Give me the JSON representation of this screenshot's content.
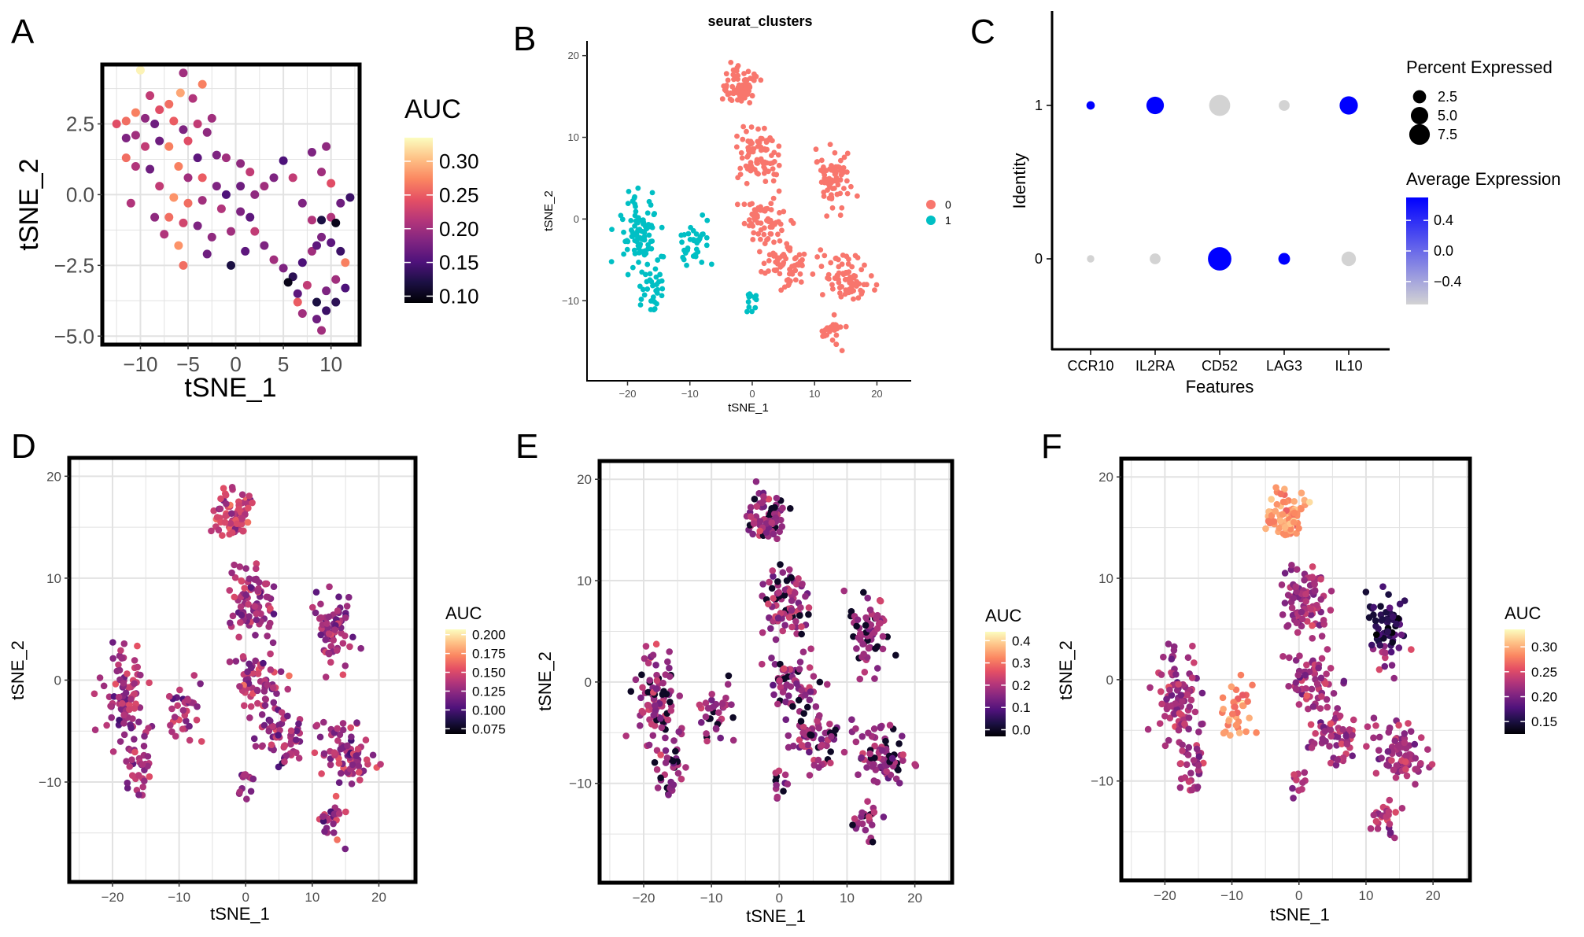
{
  "panels": {
    "A": {
      "letter": "A",
      "xlabel": "tSNE_1",
      "ylabel": "tSNE_2",
      "xticks": [
        "−10",
        "−5",
        "0",
        "5",
        "10"
      ],
      "yticks": [
        "2.5",
        "0.0",
        "−2.5",
        "−5.0"
      ],
      "legend_title": "AUC",
      "legend_ticks": [
        "0.30",
        "0.25",
        "0.20",
        "0.15",
        "0.10"
      ]
    },
    "B": {
      "letter": "B",
      "title": "seurat_clusters",
      "xlabel": "tSNE_1",
      "ylabel": "tSNE_2",
      "xticks": [
        "−20",
        "−10",
        "0",
        "10",
        "20"
      ],
      "yticks": [
        "20",
        "10",
        "0",
        "−10"
      ],
      "legend_items": [
        "0",
        "1"
      ]
    },
    "C": {
      "letter": "C",
      "xlabel": "Features",
      "ylabel": "Identity",
      "features": [
        "CCR10",
        "IL2RA",
        "CD52",
        "LAG3",
        "IL10"
      ],
      "identities": [
        "1",
        "0"
      ],
      "size_title": "Percent Expressed",
      "size_ticks": [
        "2.5",
        "5.0",
        "7.5"
      ],
      "color_title": "Average Expression",
      "color_ticks": [
        "0.4",
        "0.0",
        "−0.4"
      ]
    },
    "D": {
      "letter": "D",
      "xlabel": "tSNE_1",
      "ylabel": "tSNE_2",
      "xticks": [
        "−20",
        "−10",
        "0",
        "10",
        "20"
      ],
      "yticks": [
        "20",
        "10",
        "0",
        "−10"
      ],
      "legend_title": "AUC",
      "legend_ticks": [
        "0.200",
        "0.175",
        "0.150",
        "0.125",
        "0.100",
        "0.075"
      ]
    },
    "E": {
      "letter": "E",
      "xlabel": "tSNE_1",
      "ylabel": "tSNE_2",
      "xticks": [
        "−20",
        "−10",
        "0",
        "10",
        "20"
      ],
      "yticks": [
        "20",
        "10",
        "0",
        "−10"
      ],
      "legend_title": "AUC",
      "legend_ticks": [
        "0.4",
        "0.3",
        "0.2",
        "0.1",
        "0.0"
      ]
    },
    "F": {
      "letter": "F",
      "xlabel": "tSNE_1",
      "ylabel": "tSNE_2",
      "xticks": [
        "−20",
        "−10",
        "0",
        "10",
        "20"
      ],
      "yticks": [
        "20",
        "10",
        "0",
        "−10"
      ],
      "legend_title": "AUC",
      "legend_ticks": [
        "0.30",
        "0.25",
        "0.20",
        "0.15"
      ]
    }
  },
  "colors": {
    "magma": [
      "#000004",
      "#1c1044",
      "#4f127b",
      "#812581",
      "#b5367a",
      "#e55064",
      "#fb8761",
      "#fec287",
      "#fcfdbf"
    ],
    "cluster_0": "#f8766d",
    "cluster_1": "#00bfc4",
    "expr_high": "#0000ff",
    "expr_low": "#d3d3d3",
    "grid": "#e2e2e2"
  },
  "chart_data": [
    {
      "panel": "A",
      "type": "scatter",
      "xlabel": "tSNE_1",
      "ylabel": "tSNE_2",
      "xlim": [
        -14,
        13
      ],
      "ylim": [
        -5.3,
        4.6
      ],
      "color_scale": "magma",
      "color_range": [
        0.09,
        0.335
      ],
      "legend_title": "AUC",
      "points": [
        {
          "x": -10,
          "y": 4.4,
          "auc": 0.33
        },
        {
          "x": -5.5,
          "y": 4.3,
          "auc": 0.2
        },
        {
          "x": -3.5,
          "y": 3.9,
          "auc": 0.27
        },
        {
          "x": -5.8,
          "y": 3.6,
          "auc": 0.29
        },
        {
          "x": -9,
          "y": 3.5,
          "auc": 0.22
        },
        {
          "x": -7,
          "y": 3.2,
          "auc": 0.26
        },
        {
          "x": -4.5,
          "y": 3.4,
          "auc": 0.21
        },
        {
          "x": -8,
          "y": 3.0,
          "auc": 0.24
        },
        {
          "x": -10.5,
          "y": 2.9,
          "auc": 0.27
        },
        {
          "x": -9.5,
          "y": 2.7,
          "auc": 0.19
        },
        {
          "x": -11.5,
          "y": 2.6,
          "auc": 0.26
        },
        {
          "x": -8.5,
          "y": 2.5,
          "auc": 0.17
        },
        {
          "x": -6.5,
          "y": 2.6,
          "auc": 0.25
        },
        {
          "x": -5.5,
          "y": 2.3,
          "auc": 0.18
        },
        {
          "x": -4,
          "y": 2.5,
          "auc": 0.22
        },
        {
          "x": -3,
          "y": 2.2,
          "auc": 0.19
        },
        {
          "x": -2.5,
          "y": 2.7,
          "auc": 0.2
        },
        {
          "x": -12.5,
          "y": 2.5,
          "auc": 0.24
        },
        {
          "x": -11.5,
          "y": 2.0,
          "auc": 0.18
        },
        {
          "x": -10.5,
          "y": 2.1,
          "auc": 0.2
        },
        {
          "x": -9.5,
          "y": 1.7,
          "auc": 0.22
        },
        {
          "x": -8,
          "y": 1.9,
          "auc": 0.17
        },
        {
          "x": -7,
          "y": 1.7,
          "auc": 0.27
        },
        {
          "x": -5,
          "y": 1.9,
          "auc": 0.24
        },
        {
          "x": -4,
          "y": 1.3,
          "auc": 0.16
        },
        {
          "x": -2,
          "y": 1.4,
          "auc": 0.18
        },
        {
          "x": -1,
          "y": 1.3,
          "auc": 0.2
        },
        {
          "x": 0.5,
          "y": 1.1,
          "auc": 0.19
        },
        {
          "x": 1.5,
          "y": 0.8,
          "auc": 0.22
        },
        {
          "x": -11.5,
          "y": 1.3,
          "auc": 0.26
        },
        {
          "x": -10.5,
          "y": 1.0,
          "auc": 0.21
        },
        {
          "x": -9,
          "y": 0.9,
          "auc": 0.17
        },
        {
          "x": -6,
          "y": 1.0,
          "auc": 0.27
        },
        {
          "x": -5,
          "y": 0.6,
          "auc": 0.2
        },
        {
          "x": -3.5,
          "y": 0.6,
          "auc": 0.25
        },
        {
          "x": -2,
          "y": 0.3,
          "auc": 0.18
        },
        {
          "x": -1,
          "y": 0.0,
          "auc": 0.15
        },
        {
          "x": 0.5,
          "y": 0.3,
          "auc": 0.17
        },
        {
          "x": 2,
          "y": 0.0,
          "auc": 0.19
        },
        {
          "x": 3,
          "y": 0.3,
          "auc": 0.2
        },
        {
          "x": 4,
          "y": 0.6,
          "auc": 0.18
        },
        {
          "x": -8,
          "y": 0.3,
          "auc": 0.22
        },
        {
          "x": -6.5,
          "y": -0.1,
          "auc": 0.28
        },
        {
          "x": -5,
          "y": -0.3,
          "auc": 0.26
        },
        {
          "x": -3.5,
          "y": -0.2,
          "auc": 0.2
        },
        {
          "x": -1.5,
          "y": -0.5,
          "auc": 0.21
        },
        {
          "x": 0.5,
          "y": -0.6,
          "auc": 0.18
        },
        {
          "x": 1.5,
          "y": -0.8,
          "auc": 0.16
        },
        {
          "x": -11,
          "y": -0.3,
          "auc": 0.21
        },
        {
          "x": -8.5,
          "y": -0.8,
          "auc": 0.19
        },
        {
          "x": -7,
          "y": -0.8,
          "auc": 0.26
        },
        {
          "x": -5.5,
          "y": -1.0,
          "auc": 0.23
        },
        {
          "x": -4,
          "y": -1.1,
          "auc": 0.18
        },
        {
          "x": -2.5,
          "y": -1.5,
          "auc": 0.19
        },
        {
          "x": -0.5,
          "y": -1.3,
          "auc": 0.2
        },
        {
          "x": 2,
          "y": -1.3,
          "auc": 0.22
        },
        {
          "x": 3,
          "y": -1.8,
          "auc": 0.18
        },
        {
          "x": -7.5,
          "y": -1.4,
          "auc": 0.21
        },
        {
          "x": -6,
          "y": -1.8,
          "auc": 0.28
        },
        {
          "x": -3,
          "y": -2.1,
          "auc": 0.17
        },
        {
          "x": -0.5,
          "y": -2.5,
          "auc": 0.12
        },
        {
          "x": 1,
          "y": -2.0,
          "auc": 0.16
        },
        {
          "x": -5.5,
          "y": -2.5,
          "auc": 0.26
        },
        {
          "x": 4,
          "y": -2.3,
          "auc": 0.2
        },
        {
          "x": 5,
          "y": -2.6,
          "auc": 0.18
        },
        {
          "x": 6,
          "y": -2.9,
          "auc": 0.13
        },
        {
          "x": 7,
          "y": -2.4,
          "auc": 0.15
        },
        {
          "x": 8,
          "y": -2.0,
          "auc": 0.2
        },
        {
          "x": 9,
          "y": -1.5,
          "auc": 0.18
        },
        {
          "x": 10,
          "y": -1.7,
          "auc": 0.16
        },
        {
          "x": 11,
          "y": -2.0,
          "auc": 0.14
        },
        {
          "x": 11.5,
          "y": -2.4,
          "auc": 0.27
        },
        {
          "x": 5.5,
          "y": -3.1,
          "auc": 0.1
        },
        {
          "x": 6.5,
          "y": -3.5,
          "auc": 0.16
        },
        {
          "x": 7.5,
          "y": -3.2,
          "auc": 0.22
        },
        {
          "x": 8.5,
          "y": -3.8,
          "auc": 0.12
        },
        {
          "x": 9.5,
          "y": -3.4,
          "auc": 0.18
        },
        {
          "x": 10.5,
          "y": -3.0,
          "auc": 0.2
        },
        {
          "x": 11.5,
          "y": -3.3,
          "auc": 0.15
        },
        {
          "x": 7,
          "y": -4.2,
          "auc": 0.2
        },
        {
          "x": 8.5,
          "y": -4.4,
          "auc": 0.17
        },
        {
          "x": 9.5,
          "y": -4.1,
          "auc": 0.14
        },
        {
          "x": 10.5,
          "y": -3.8,
          "auc": 0.13
        },
        {
          "x": 6.5,
          "y": -3.8,
          "auc": 0.25
        },
        {
          "x": 9,
          "y": -4.8,
          "auc": 0.2
        },
        {
          "x": 10,
          "y": -0.8,
          "auc": 0.21
        },
        {
          "x": 11,
          "y": -0.3,
          "auc": 0.17
        },
        {
          "x": 12,
          "y": -0.1,
          "auc": 0.14
        },
        {
          "x": 9,
          "y": 0.8,
          "auc": 0.2
        },
        {
          "x": 10,
          "y": 0.4,
          "auc": 0.24
        },
        {
          "x": 8,
          "y": 1.5,
          "auc": 0.18
        },
        {
          "x": 9.5,
          "y": 1.7,
          "auc": 0.19
        },
        {
          "x": 5,
          "y": 1.2,
          "auc": 0.15
        },
        {
          "x": 6,
          "y": 0.6,
          "auc": 0.22
        },
        {
          "x": 7,
          "y": -0.3,
          "auc": 0.18
        },
        {
          "x": 8,
          "y": -0.9,
          "auc": 0.21
        },
        {
          "x": 9,
          "y": -0.9,
          "auc": 0.12
        },
        {
          "x": 8.5,
          "y": -1.8,
          "auc": 0.16
        },
        {
          "x": 10.5,
          "y": -1.0,
          "auc": 0.1
        }
      ]
    },
    {
      "panel": "B",
      "type": "scatter",
      "title": "seurat_clusters",
      "xlabel": "tSNE_1",
      "ylabel": "tSNE_2",
      "xlim": [
        -26.5,
        25.5
      ],
      "ylim": [
        -19.8,
        21.8
      ],
      "series": [
        {
          "name": "0",
          "color": "#f8766d"
        },
        {
          "name": "1",
          "color": "#00bfc4"
        }
      ]
    },
    {
      "panel": "C",
      "type": "dot_plot",
      "xlabel": "Features",
      "ylabel": "Identity",
      "features": [
        "CCR10",
        "IL2RA",
        "CD52",
        "LAG3",
        "IL10"
      ],
      "identities": [
        "0",
        "1"
      ],
      "size_title": "Percent Expressed",
      "color_title": "Average Expression",
      "dots": [
        {
          "feature": "CCR10",
          "identity": "1",
          "pct": 0.6,
          "avg": 0.7
        },
        {
          "feature": "IL2RA",
          "identity": "1",
          "pct": 4.5,
          "avg": 0.7
        },
        {
          "feature": "CD52",
          "identity": "1",
          "pct": 7.0,
          "avg": -0.7
        },
        {
          "feature": "LAG3",
          "identity": "1",
          "pct": 1.3,
          "avg": -0.7
        },
        {
          "feature": "IL10",
          "identity": "1",
          "pct": 5.0,
          "avg": 0.7
        },
        {
          "feature": "CCR10",
          "identity": "0",
          "pct": 0.4,
          "avg": -0.7
        },
        {
          "feature": "IL2RA",
          "identity": "0",
          "pct": 1.3,
          "avg": -0.7
        },
        {
          "feature": "CD52",
          "identity": "0",
          "pct": 9.0,
          "avg": 0.7
        },
        {
          "feature": "LAG3",
          "identity": "0",
          "pct": 1.6,
          "avg": 0.7
        },
        {
          "feature": "IL10",
          "identity": "0",
          "pct": 2.8,
          "avg": -0.7
        }
      ]
    },
    {
      "panel": "D",
      "type": "scatter",
      "xlabel": "tSNE_1",
      "ylabel": "tSNE_2",
      "xlim": [
        -26.5,
        25.5
      ],
      "ylim": [
        -19.8,
        21.8
      ],
      "color_scale": "magma",
      "color_range": [
        0.068,
        0.207
      ],
      "legend_title": "AUC"
    },
    {
      "panel": "E",
      "type": "scatter",
      "xlabel": "tSNE_1",
      "ylabel": "tSNE_2",
      "xlim": [
        -26.5,
        25.5
      ],
      "ylim": [
        -19.8,
        21.8
      ],
      "color_scale": "magma",
      "color_range": [
        -0.03,
        0.44
      ],
      "legend_title": "AUC"
    },
    {
      "panel": "F",
      "type": "scatter",
      "xlabel": "tSNE_1",
      "ylabel": "tSNE_2",
      "xlim": [
        -26.5,
        25.5
      ],
      "ylim": [
        -19.8,
        21.8
      ],
      "color_scale": "magma",
      "color_range": [
        0.125,
        0.335
      ],
      "legend_title": "AUC"
    }
  ]
}
